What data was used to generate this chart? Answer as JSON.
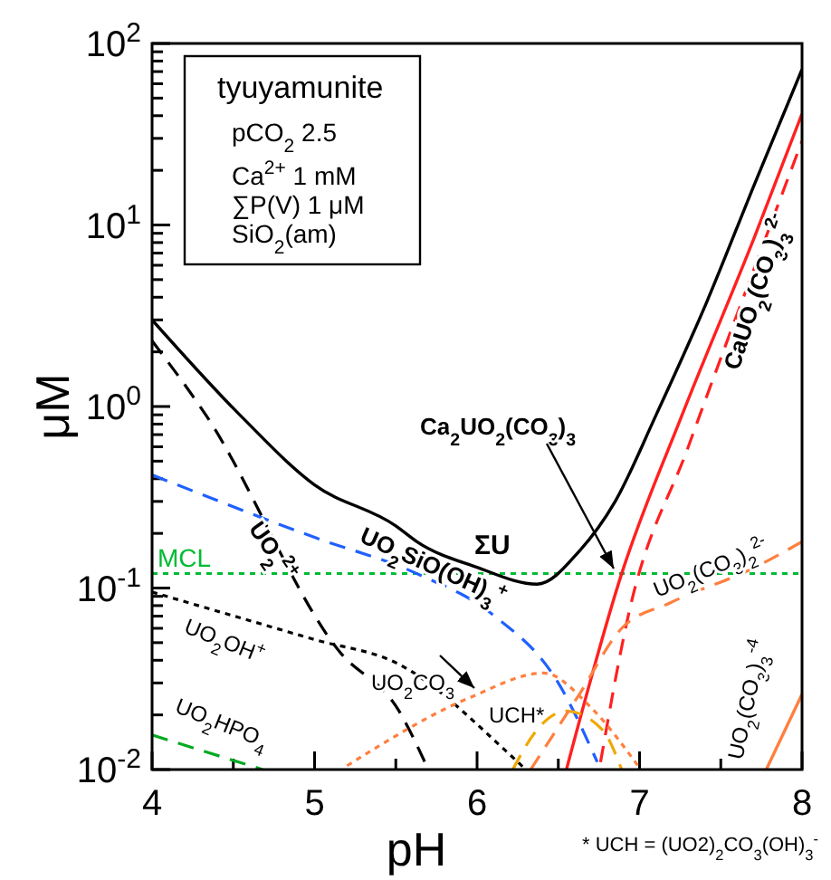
{
  "chart_data": {
    "type": "line",
    "xlabel": "pH",
    "ylabel": "μM",
    "log": "y",
    "xlim": [
      4,
      8
    ],
    "ylim": [
      0.01,
      100
    ],
    "xticks": [
      4,
      {
        "value": 4.5,
        "label": null
      },
      5,
      {
        "value": 5.5,
        "label": null
      },
      6,
      {
        "value": 6.5,
        "label": null
      },
      7,
      {
        "value": 7.5,
        "label": null
      },
      8
    ],
    "yticks": [
      {
        "value": 0.01,
        "label": "10$^{-2}$"
      },
      {
        "value": 0.02,
        "label": null
      },
      {
        "value": 0.03,
        "label": null
      },
      {
        "value": 0.04,
        "label": null
      },
      {
        "value": 0.05,
        "label": null
      },
      {
        "value": 0.06,
        "label": null
      },
      {
        "value": 0.07,
        "label": null
      },
      {
        "value": 0.08,
        "label": null
      },
      {
        "value": 0.09,
        "label": null
      },
      {
        "value": 0.1,
        "label": "10$^{-1}$"
      },
      {
        "value": 0.2,
        "label": null
      },
      {
        "value": 0.3,
        "label": null
      },
      {
        "value": 0.4,
        "label": null
      },
      {
        "value": 0.5,
        "label": null
      },
      {
        "value": 0.6,
        "label": null
      },
      {
        "value": 0.7,
        "label": null
      },
      {
        "value": 0.8,
        "label": null
      },
      {
        "value": 0.9,
        "label": null
      },
      {
        "value": 1,
        "label": "10$^{0}$"
      },
      {
        "value": 2,
        "label": null
      },
      {
        "value": 3,
        "label": null
      },
      {
        "value": 4,
        "label": null
      },
      {
        "value": 5,
        "label": null
      },
      {
        "value": 6,
        "label": null
      },
      {
        "value": 7,
        "label": null
      },
      {
        "value": 8,
        "label": null
      },
      {
        "value": 9,
        "label": null
      },
      {
        "value": 10,
        "label": "10$^{1}$"
      },
      {
        "value": 20,
        "label": null
      },
      {
        "value": 30,
        "label": null
      },
      {
        "value": 40,
        "label": null
      },
      {
        "value": 50,
        "label": null
      },
      {
        "value": 60,
        "label": null
      },
      {
        "value": 70,
        "label": null
      },
      {
        "value": 80,
        "label": null
      },
      {
        "value": 90,
        "label": null
      },
      {
        "value": 100,
        "label": "10$^{2}$"
      }
    ],
    "grid": false,
    "marker": "none",
    "series": [
      {
        "name": "ΣU",
        "color": "#000000",
        "line_style": "solid",
        "x": [
          4,
          4.55,
          5,
          5.5,
          5.63,
          6,
          6.37,
          6.63,
          6.85,
          7.1,
          7.41,
          7.71,
          8
        ],
        "values": [
          3.0,
          0.88,
          0.37,
          0.22,
          0.18,
          0.13,
          0.105,
          0.16,
          0.3,
          0.89,
          3.7,
          17,
          72
        ]
      },
      {
        "name": "Ca$_{2}$UO$_{2}$(CO$_{3}$)$_{3}$",
        "color": "#ff2020",
        "line_style": "solid",
        "x": [
          6.55,
          6.89,
          7.26,
          7.71,
          8
        ],
        "values": [
          0.01,
          0.12,
          0.89,
          8.7,
          41
        ]
      },
      {
        "name": "CaUO$_{2}$(CO$_{3}$)$_{3}$$^{2-}$",
        "color": "#ff2020",
        "line_style": "dashed",
        "x": [
          6.76,
          6.93,
          7.3,
          7.71,
          8
        ],
        "values": [
          0.011,
          0.07,
          0.6,
          5.9,
          29
        ]
      },
      {
        "name": "UO$_{2}$SiO(OH)$_{3}$$^{+}$",
        "color": "#2060ff",
        "line_style": "dashed",
        "x": [
          4,
          5,
          5.63,
          6.1,
          6.5,
          6.74
        ],
        "values": [
          0.42,
          0.19,
          0.12,
          0.071,
          0.03,
          0.011
        ]
      },
      {
        "name": "UO$_{2}$$^{2+}$",
        "color": "#000000",
        "line_style": "dashed",
        "x": [
          4,
          4.33,
          5.15,
          5.52,
          5.7
        ],
        "values": [
          2.3,
          0.9,
          0.045,
          0.021,
          0.01
        ]
      },
      {
        "name": "UO$_{2}$OH$^{+}$",
        "color": "#000000",
        "line_style": "dotted",
        "x": [
          4,
          5,
          5.52,
          6.18,
          6.3
        ],
        "values": [
          0.095,
          0.052,
          0.038,
          0.0126,
          0.01
        ]
      },
      {
        "name": "UO$_{2}$HPO$_{4}$",
        "color": "#00aa22",
        "line_style": "dashed",
        "x": [
          4,
          4.68
        ],
        "values": [
          0.0155,
          0.01
        ]
      },
      {
        "name": "UO$_{2}$CO$_{3}$",
        "color": "#ff7f3f",
        "line_style": "dotted",
        "x": [
          5.2,
          5.96,
          6.41,
          6.7,
          7.0
        ],
        "values": [
          0.0105,
          0.025,
          0.034,
          0.022,
          0.0102
        ]
      },
      {
        "name": "UCH*",
        "color": "#f0a800",
        "line_style": "dashed",
        "x": [
          6.22,
          6.37,
          6.55,
          6.77,
          6.89
        ],
        "values": [
          0.01,
          0.0166,
          0.021,
          0.0166,
          0.01
        ]
      },
      {
        "name": "UO$_{2}$(CO$_{3}$)$_{2}$$^{2-}$",
        "color": "#ff7f3f",
        "line_style": "dashed",
        "x": [
          6.33,
          6.63,
          6.89,
          7.19,
          7.71,
          8
        ],
        "values": [
          0.01,
          0.026,
          0.06,
          0.083,
          0.13,
          0.18
        ]
      },
      {
        "name": "UO$_{2}$(CO$_{3}$)$_{3}$$^{-4}$",
        "color": "#ff7f3f",
        "line_style": "solid",
        "x": [
          7.78,
          8
        ],
        "values": [
          0.01,
          0.026
        ]
      }
    ],
    "ref_lines": [
      {
        "axis": "y",
        "value": 0.12,
        "label": "MCL",
        "color": "#00bb33",
        "line_style": "dotted"
      }
    ],
    "annotations": [
      "tyuyamunite",
      "pCO$_{2}$ 2.5",
      "Ca$^{2+}$ 1 mM",
      "∑P(V) 1 μM",
      "SiO$_{2}$(am)",
      "* UCH = (UO2)$_{2}$CO$_{3}$(OH)$_{3}$$^{-}$"
    ]
  }
}
